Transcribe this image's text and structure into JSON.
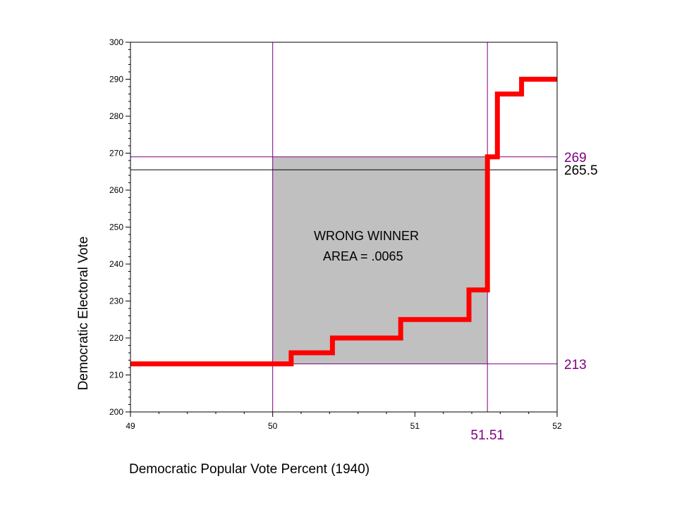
{
  "chart_data": {
    "type": "line",
    "xlabel": "Democratic Popular Vote Percent (1940)",
    "ylabel": "Democratic Electoral Vote",
    "xlim": [
      49,
      52
    ],
    "ylim": [
      200,
      300
    ],
    "x_ticks": [
      "49",
      "50",
      "51",
      "52"
    ],
    "y_ticks": [
      "200",
      "210",
      "220",
      "230",
      "240",
      "250",
      "260",
      "270",
      "280",
      "290",
      "300"
    ],
    "grid": false,
    "series": [
      {
        "color": "#ff0000",
        "step": true,
        "points": [
          [
            49.0,
            213
          ],
          [
            50.13,
            213
          ],
          [
            50.13,
            216
          ],
          [
            50.42,
            216
          ],
          [
            50.42,
            220
          ],
          [
            50.9,
            220
          ],
          [
            50.9,
            225
          ],
          [
            51.38,
            225
          ],
          [
            51.38,
            233
          ],
          [
            51.51,
            233
          ],
          [
            51.51,
            269
          ],
          [
            51.58,
            269
          ],
          [
            51.58,
            286
          ],
          [
            51.75,
            286
          ],
          [
            51.75,
            290
          ],
          [
            52.0,
            290
          ]
        ]
      }
    ],
    "reference_lines": {
      "vertical": [
        {
          "x": 50,
          "color": "#800080"
        },
        {
          "x": 51.51,
          "color": "#800080",
          "label": "51.51"
        }
      ],
      "horizontal": [
        {
          "y": 269,
          "color": "#800080",
          "label": "269"
        },
        {
          "y": 265.5,
          "color": "#000000",
          "label": "265.5"
        },
        {
          "y": 213,
          "color": "#800080",
          "label": "213"
        }
      ]
    },
    "shaded_region": {
      "x": [
        50,
        51.51
      ],
      "y": [
        213,
        269
      ],
      "color": "#c0c0c0"
    },
    "annotation": {
      "line1": "WRONG WINNER",
      "line2": "AREA = .0065"
    }
  }
}
